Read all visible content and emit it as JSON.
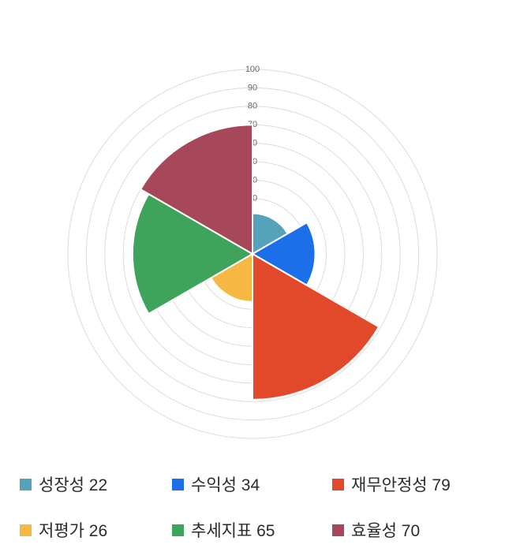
{
  "page": {
    "background": "#ffffff"
  },
  "chart_data": {
    "type": "pie",
    "variant": "polar-area",
    "title": "",
    "categories": [
      "성장성",
      "수익성",
      "재무안정성",
      "저평가",
      "추세지표",
      "효율성"
    ],
    "values": [
      22,
      34,
      79,
      26,
      65,
      70
    ],
    "colors": [
      "#55A2BB",
      "#1B6FE8",
      "#E2492B",
      "#F6B843",
      "#3EA45C",
      "#A6485A"
    ],
    "rlim": [
      0,
      100
    ],
    "r_ticks": [
      10,
      20,
      30,
      40,
      50,
      60,
      70,
      80,
      90,
      100
    ],
    "start_angle_deg": 0,
    "direction": "clockwise",
    "segment_angle_deg": 60,
    "grid": true,
    "grid_color": "#dcdcdc",
    "tick_label_color": "#666666",
    "legend_position": "bottom",
    "legend_text_color": "#2b2b2b"
  }
}
